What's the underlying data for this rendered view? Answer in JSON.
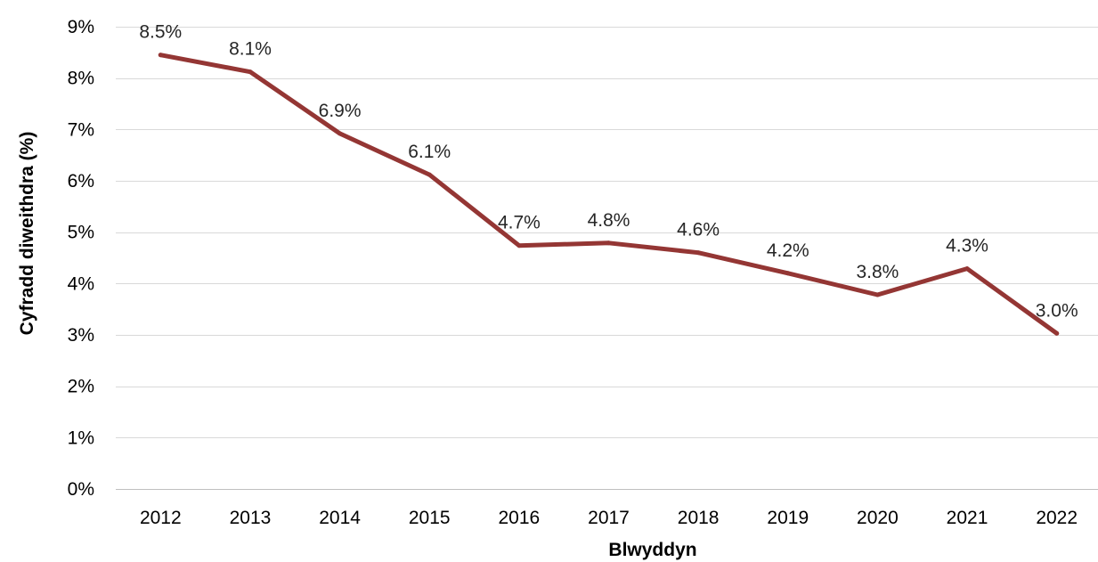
{
  "chart_data": {
    "type": "line",
    "title": "",
    "xlabel": "Blwyddyn",
    "ylabel": "Cyfradd diweithdra (%)",
    "categories": [
      "2012",
      "2013",
      "2014",
      "2015",
      "2016",
      "2017",
      "2018",
      "2019",
      "2020",
      "2021",
      "2022"
    ],
    "series": [
      {
        "values": [
          8.45,
          8.12,
          6.92,
          6.12,
          4.74,
          4.79,
          4.6,
          4.2,
          3.78,
          4.29,
          3.03
        ],
        "data_labels": [
          "8.5%",
          "8.1%",
          "6.9%",
          "6.1%",
          "4.7%",
          "4.8%",
          "4.6%",
          "4.2%",
          "3.8%",
          "4.3%",
          "3.0%"
        ]
      }
    ],
    "yticks": [
      0,
      1,
      2,
      3,
      4,
      5,
      6,
      7,
      8,
      9
    ],
    "ytick_labels": [
      "0%",
      "1%",
      "2%",
      "3%",
      "4%",
      "5%",
      "6%",
      "7%",
      "8%",
      "9%"
    ],
    "ylim": [
      0,
      9
    ],
    "grid": "horizontal",
    "legend": "none",
    "line_color": "#943634"
  }
}
